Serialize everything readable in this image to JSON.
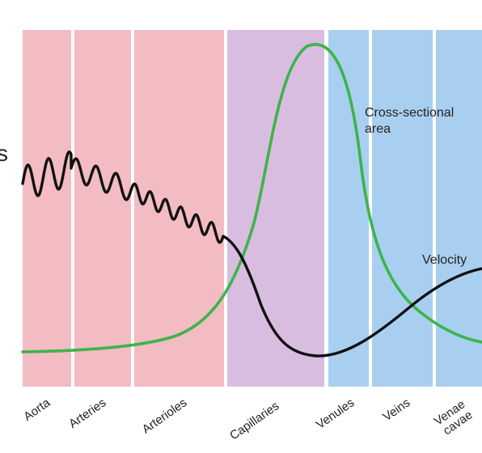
{
  "diagram": {
    "colors": {
      "arterial_region": "#f2bcc2",
      "capillary_region": "#d9bde0",
      "venous_region": "#a9cff0",
      "divider": "#ffffff",
      "cross_sectional_area_curve": "#3cb44a",
      "velocity_curve": "#111111"
    },
    "regions": [
      {
        "name": "arterial",
        "color_key": "arterial_region"
      },
      {
        "name": "capillary",
        "color_key": "capillary_region"
      },
      {
        "name": "venous",
        "color_key": "venous_region"
      }
    ],
    "vessels": [
      {
        "id": "aorta",
        "label": "Aorta",
        "region": "arterial"
      },
      {
        "id": "arteries",
        "label": "Arteries",
        "region": "arterial"
      },
      {
        "id": "arterioles",
        "label": "Arterioles",
        "region": "arterial"
      },
      {
        "id": "capillaries",
        "label": "Capillaries",
        "region": "capillary"
      },
      {
        "id": "venules",
        "label": "Venules",
        "region": "venous"
      },
      {
        "id": "veins",
        "label": "Veins",
        "region": "venous"
      },
      {
        "id": "venae-cavae",
        "label": "Venae\ncavae",
        "region": "venous"
      }
    ],
    "curves": {
      "cross_sectional_area": {
        "label_lines": [
          "Cross-sectional",
          "area"
        ],
        "color_key": "cross_sectional_area_curve",
        "peak_vessel": "capillaries"
      },
      "velocity": {
        "label": "Velocity",
        "color_key": "velocity_curve",
        "pulsatile_in": [
          "aorta",
          "arteries",
          "arterioles"
        ],
        "minimum_vessel": "capillaries"
      }
    },
    "cropped_text_fragment": "s"
  }
}
